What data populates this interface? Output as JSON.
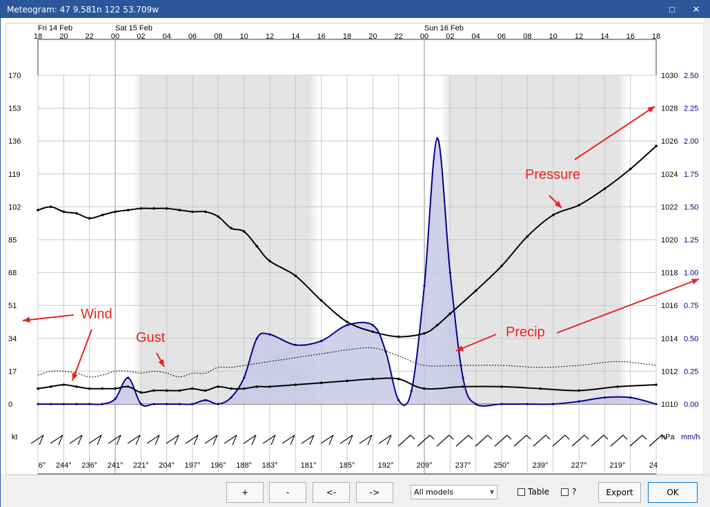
{
  "window": {
    "title": "Meteogram: 47 9.581n 122 53.709w",
    "maximize_icon": "□",
    "close_icon": "✕"
  },
  "top_axis": {
    "dates": [
      {
        "label": "Fri 14 Feb",
        "hour": 0
      },
      {
        "label": "Sat 15 Feb",
        "hour": 6
      },
      {
        "label": "Sun 16 Feb",
        "hour": 30
      }
    ],
    "hours": [
      "18",
      "20",
      "22",
      "00",
      "02",
      "04",
      "06",
      "08",
      "10",
      "12",
      "14",
      "16",
      "18",
      "20",
      "22",
      "00",
      "02",
      "04",
      "06",
      "08",
      "10",
      "12",
      "14",
      "16",
      "18"
    ]
  },
  "left_axis": {
    "ticks": [
      "170",
      "153",
      "136",
      "119",
      "102",
      "85",
      "68",
      "51",
      "34",
      "17",
      "0"
    ],
    "unit": "kt"
  },
  "pressure_axis": {
    "ticks": [
      "1030",
      "1028",
      "1026",
      "1024",
      "1022",
      "1020",
      "1018",
      "1016",
      "1014",
      "1012",
      "1010"
    ],
    "unit": "hPa"
  },
  "precip_axis": {
    "ticks": [
      "2.50",
      "2.25",
      "2.00",
      "1.75",
      "1.50",
      "1.25",
      "1.00",
      "0.75",
      "0.50",
      "0.25",
      "0.00"
    ],
    "unit": "mm/h"
  },
  "direction_labels": [
    "6°",
    "244°",
    "236°",
    "241°",
    "221°",
    "204°",
    "197°",
    "196°",
    "188°",
    "183°",
    "181°",
    "185°",
    "192°",
    "209°",
    "237°",
    "250°",
    "239°",
    "227°",
    "219°",
    "24"
  ],
  "annotations": {
    "pressure": "Pressure",
    "wind": "Wind",
    "gust": "Gust",
    "precip": "Precip"
  },
  "colors": {
    "annotation": "#e8231c",
    "precip_line": "#00008b",
    "precip_fill": "#c8c8e6",
    "night_shade": "#e4e4e4",
    "grid": "#c8c8c8"
  },
  "chart_data": {
    "type": "line",
    "x_unit": "hours since Fri 14 Feb 18:00",
    "xlim": [
      0,
      48
    ],
    "series": [
      {
        "name": "Pressure",
        "axis": "hPa",
        "x": [
          0,
          1,
          2,
          3,
          4,
          5,
          6,
          7,
          8,
          9,
          10,
          11,
          12,
          13,
          14,
          15,
          16,
          17,
          18,
          20,
          22,
          24,
          26,
          28,
          30,
          31,
          32,
          34,
          36,
          38,
          40,
          42,
          44,
          46,
          48
        ],
        "values": [
          1021.8,
          1022.0,
          1021.7,
          1021.6,
          1021.3,
          1021.5,
          1021.7,
          1021.8,
          1021.9,
          1021.9,
          1021.9,
          1021.8,
          1021.7,
          1021.7,
          1021.4,
          1020.7,
          1020.5,
          1019.6,
          1018.7,
          1017.8,
          1016.3,
          1015.0,
          1014.4,
          1014.1,
          1014.3,
          1014.8,
          1015.5,
          1016.9,
          1018.4,
          1020.2,
          1021.5,
          1022.1,
          1023.1,
          1024.3,
          1025.7
        ]
      },
      {
        "name": "Wind",
        "axis": "kt",
        "x": [
          0,
          1,
          2,
          3,
          4,
          5,
          6,
          7,
          8,
          9,
          10,
          11,
          12,
          13,
          14,
          15,
          16,
          17,
          18,
          20,
          22,
          24,
          26,
          28,
          30,
          33,
          36,
          39,
          42,
          45,
          48
        ],
        "values": [
          8,
          9,
          10,
          9,
          8,
          8,
          8,
          9,
          6,
          7,
          7,
          7,
          8,
          7,
          9,
          8,
          8,
          9,
          9,
          10,
          11,
          12,
          13,
          13,
          8,
          9,
          9,
          8,
          7,
          9,
          10
        ]
      },
      {
        "name": "Gust",
        "axis": "kt",
        "x": [
          0,
          1,
          2,
          3,
          4,
          5,
          6,
          7,
          8,
          9,
          10,
          11,
          12,
          13,
          14,
          15,
          16,
          17,
          18,
          20,
          22,
          24,
          26,
          28,
          30,
          33,
          36,
          39,
          42,
          45,
          48
        ],
        "values": [
          15,
          17,
          17,
          16,
          14,
          15,
          17,
          17,
          16,
          17,
          16,
          14,
          16,
          16,
          19,
          19,
          20,
          21,
          22,
          24,
          26,
          28,
          29,
          25,
          20,
          20,
          20,
          19,
          20,
          22,
          20
        ]
      },
      {
        "name": "Precip",
        "axis": "mm/h",
        "x": [
          0,
          1,
          2,
          3,
          4,
          5,
          6,
          7,
          8,
          9,
          10,
          11,
          12,
          13,
          14,
          15,
          16,
          17,
          18,
          20,
          22,
          24,
          26,
          27,
          28,
          29,
          30,
          31,
          32,
          33,
          34,
          36,
          38,
          40,
          42,
          44,
          46,
          48
        ],
        "values": [
          0,
          0,
          0,
          0,
          0,
          0,
          0.04,
          0.2,
          0,
          0,
          0,
          0,
          0,
          0.03,
          0,
          0.05,
          0.2,
          0.5,
          0.53,
          0.45,
          0.48,
          0.6,
          0.6,
          0.4,
          0.03,
          0.1,
          0.9,
          2.02,
          1.0,
          0.2,
          0,
          0,
          0,
          0,
          0.02,
          0.05,
          0.05,
          0
        ]
      }
    ],
    "ylim_left": [
      0,
      170
    ],
    "ylim_pressure": [
      1010,
      1030
    ],
    "ylim_precip": [
      0,
      2.5
    ],
    "grid": true
  }
}
